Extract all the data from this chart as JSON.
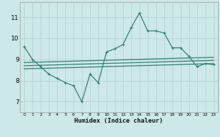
{
  "xlabel": "Humidex (Indice chaleur)",
  "background_color": "#cce8e8",
  "grid_color": "#b8d4d4",
  "line_color": "#2e7d6e",
  "xlim": [
    -0.5,
    23.5
  ],
  "ylim": [
    6.5,
    11.7
  ],
  "yticks": [
    7,
    8,
    9,
    10,
    11
  ],
  "xticks": [
    0,
    1,
    2,
    3,
    4,
    5,
    6,
    7,
    8,
    9,
    10,
    11,
    12,
    13,
    14,
    15,
    16,
    17,
    18,
    19,
    20,
    21,
    22,
    23
  ],
  "main_line_x": [
    0,
    1,
    2,
    3,
    4,
    5,
    6,
    7,
    8,
    9,
    10,
    11,
    12,
    13,
    14,
    15,
    16,
    17,
    18,
    19,
    20,
    21,
    22,
    23
  ],
  "main_line_y": [
    9.6,
    9.0,
    8.65,
    8.3,
    8.1,
    7.9,
    7.75,
    7.0,
    8.3,
    7.9,
    9.35,
    9.5,
    9.7,
    10.5,
    11.2,
    10.35,
    10.35,
    10.25,
    9.55,
    9.55,
    9.15,
    8.65,
    8.8,
    8.75
  ],
  "line2_x": [
    0,
    23
  ],
  "line2_y": [
    8.85,
    9.1
  ],
  "line3_x": [
    0,
    23
  ],
  "line3_y": [
    8.7,
    8.95
  ],
  "line4_x": [
    0,
    23
  ],
  "line4_y": [
    8.55,
    8.8
  ]
}
